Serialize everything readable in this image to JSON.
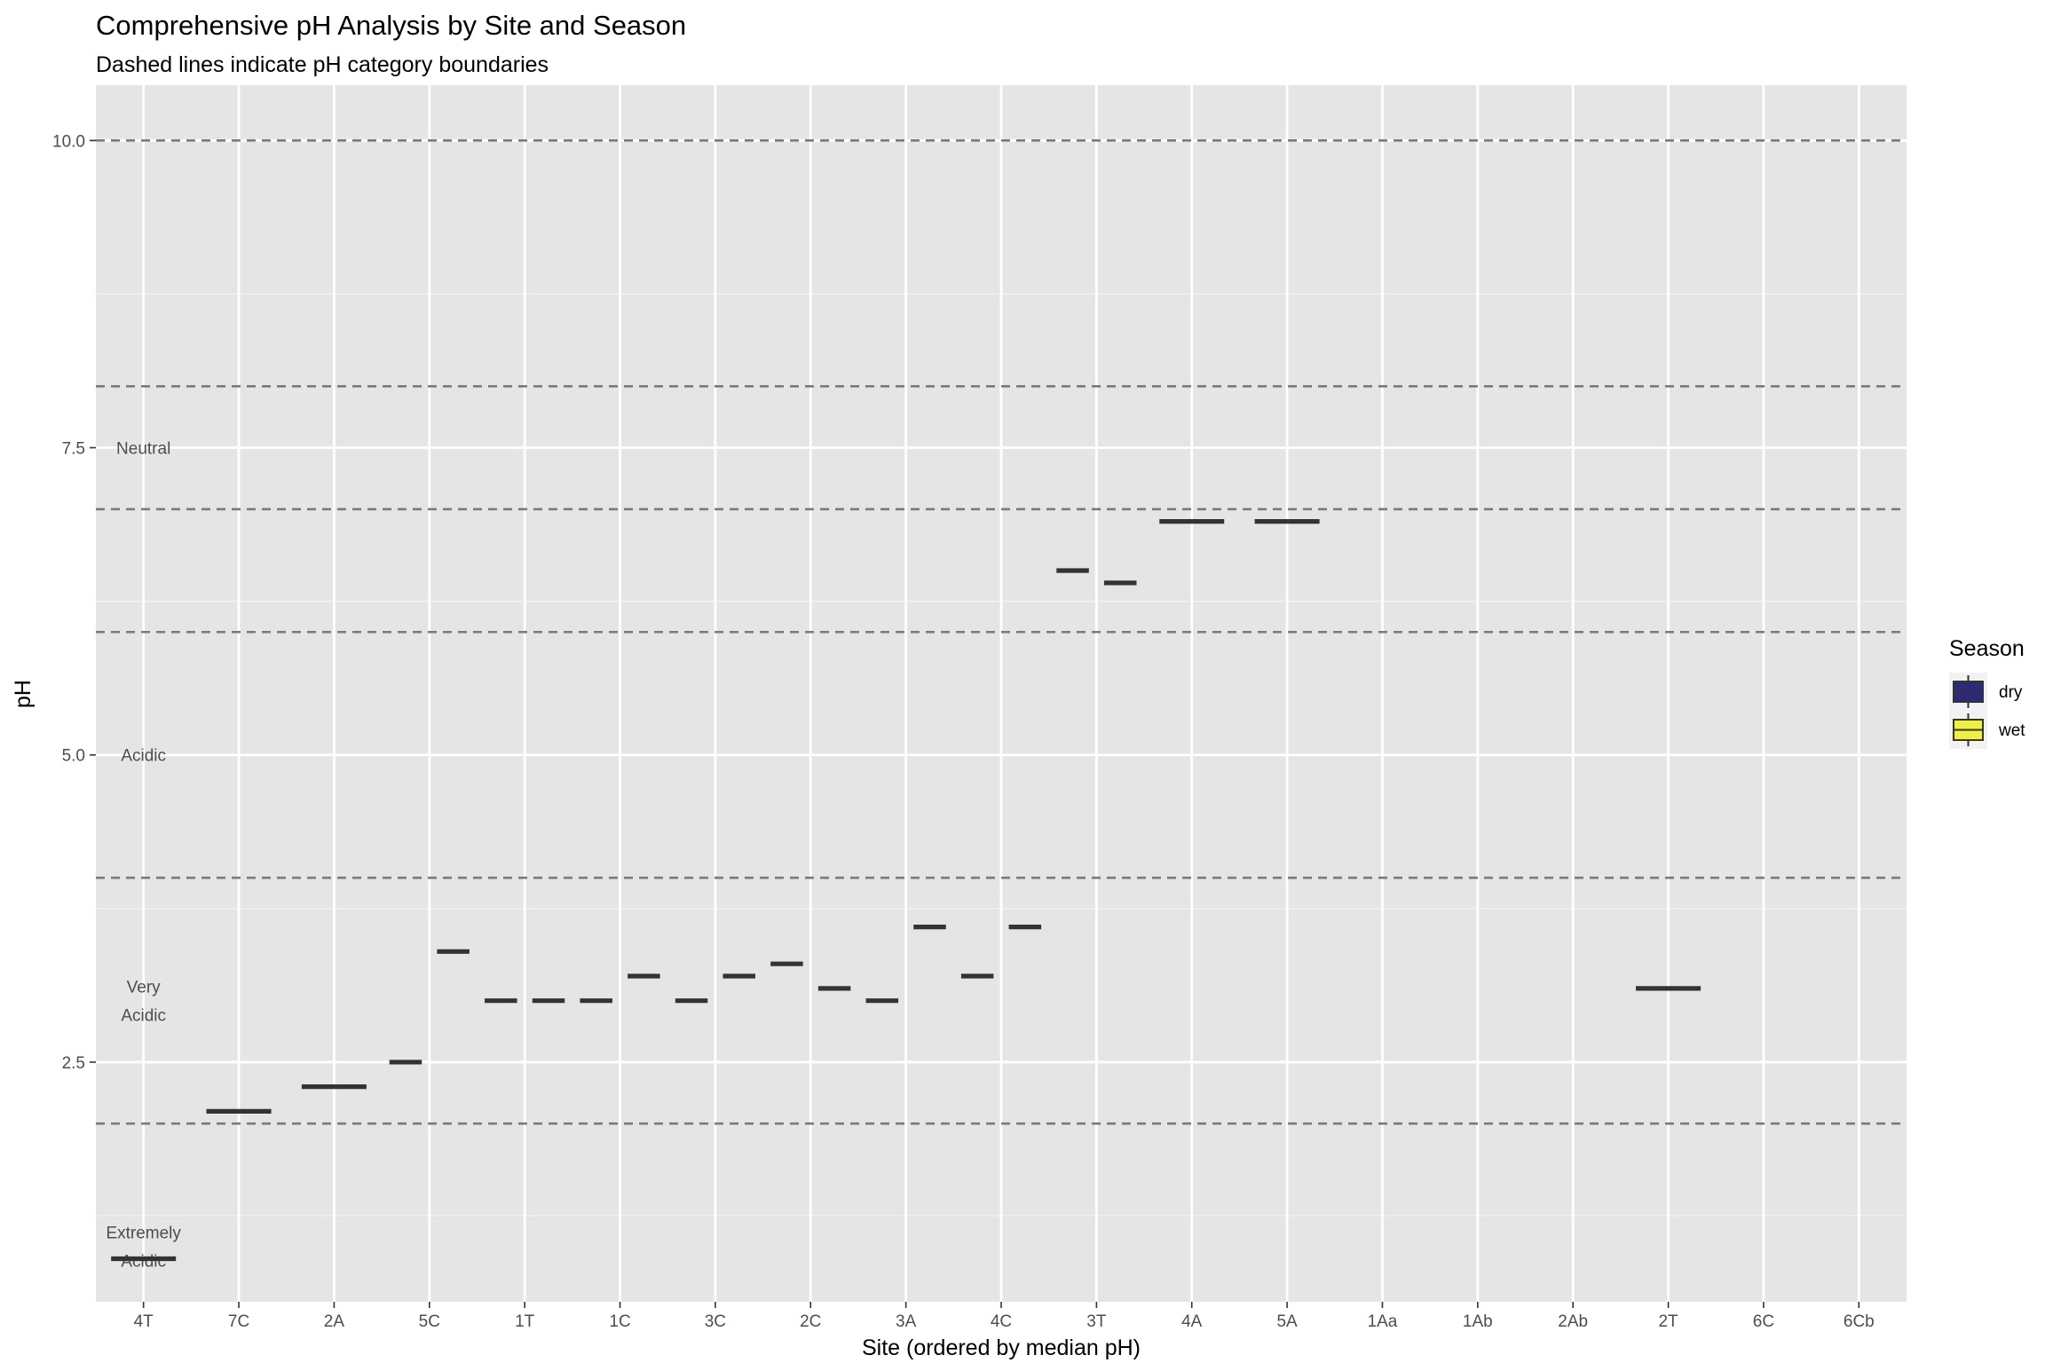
{
  "chart_data": {
    "type": "box",
    "title": "Comprehensive pH Analysis by Site and Season",
    "subtitle": "Dashed lines indicate pH category boundaries",
    "xlabel": "Site (ordered by median pH)",
    "ylabel": "pH",
    "ylim": [
      0.55,
      10.45
    ],
    "yticks": [
      2.5,
      5.0,
      7.5,
      10.0
    ],
    "ytick_labels": [
      "2.5",
      "5.0",
      "7.5",
      "10.0"
    ],
    "categories": [
      "4T",
      "7C",
      "2A",
      "5C",
      "1T",
      "1C",
      "3C",
      "2C",
      "3A",
      "4C",
      "3T",
      "4A",
      "5A",
      "1Aa",
      "1Ab",
      "2Ab",
      "2T",
      "6C",
      "6Cb"
    ],
    "boundaries": [
      2,
      4,
      6,
      7,
      8,
      10
    ],
    "category_labels": [
      {
        "lines": [
          "Extremely",
          "Acidic"
        ],
        "y": 1.0
      },
      {
        "lines": [
          "Very",
          "Acidic"
        ],
        "y": 3.0
      },
      {
        "lines": [
          "Acidic"
        ],
        "y": 5.0
      },
      {
        "lines": [
          "Neutral"
        ],
        "y": 7.5
      }
    ],
    "legend": {
      "title": "Season",
      "position": "right"
    },
    "series": [
      {
        "name": "dry",
        "color": "#2d2a7d",
        "values": [
          0.9,
          2.1,
          2.3,
          2.5,
          3.0,
          3.0,
          3.0,
          3.3,
          3.0,
          3.2,
          6.5,
          6.9,
          6.9,
          null,
          null,
          null,
          3.1,
          null,
          null
        ]
      },
      {
        "name": "wet",
        "color": "#f0f040",
        "values": [
          null,
          null,
          null,
          3.4,
          3.0,
          3.2,
          3.2,
          3.1,
          3.6,
          3.6,
          6.4,
          null,
          null,
          null,
          null,
          null,
          null,
          null,
          null
        ]
      }
    ],
    "grid": true
  }
}
